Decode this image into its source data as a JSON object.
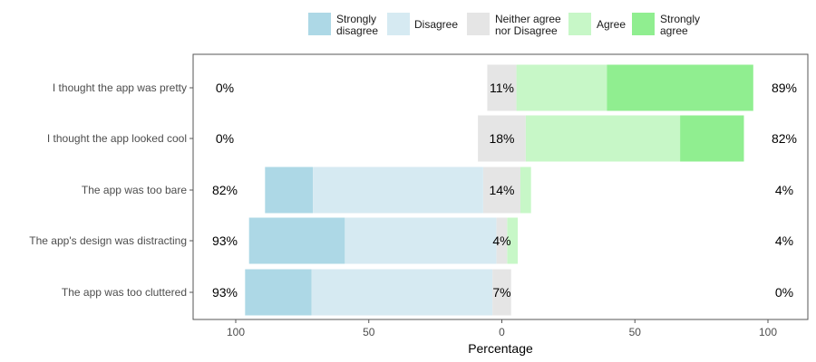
{
  "chart_data": {
    "type": "bar",
    "orientation": "horizontal-diverging",
    "xlabel": "Percentage",
    "xlim": [
      -110,
      110
    ],
    "x_ticks": [
      -100,
      -50,
      0,
      50,
      100
    ],
    "x_tick_labels": [
      "100",
      "50",
      "0",
      "50",
      "100"
    ],
    "legend_position": "top",
    "levels": [
      {
        "name": "Strongly disagree",
        "lines": [
          "Strongly",
          "disagree"
        ],
        "color": "#ADD8E6"
      },
      {
        "name": "Disagree",
        "lines": [
          "Disagree"
        ],
        "color": "#D6EAF2"
      },
      {
        "name": "Neither agree nor Disagree",
        "lines": [
          "Neither agree",
          "nor Disagree"
        ],
        "color": "#E5E5E5"
      },
      {
        "name": "Agree",
        "lines": [
          "Agree"
        ],
        "color": "#C7F7C7"
      },
      {
        "name": "Strongly agree",
        "lines": [
          "Strongly",
          "agree"
        ],
        "color": "#90EE90"
      }
    ],
    "categories": [
      "I thought the app was pretty",
      "I thought the app looked cool",
      "The app was too bare",
      "The app's design was distracting",
      "The app was too cluttered"
    ],
    "values": [
      [
        0,
        0,
        11,
        34,
        55
      ],
      [
        0,
        0,
        18,
        58,
        24
      ],
      [
        18,
        64,
        14,
        4,
        0
      ],
      [
        36,
        57,
        4,
        4,
        0
      ],
      [
        25,
        68,
        7,
        0,
        0
      ]
    ],
    "left_labels": [
      "0%",
      "0%",
      "82%",
      "93%",
      "93%"
    ],
    "center_labels": [
      "11%",
      "18%",
      "14%",
      "4%",
      "7%"
    ],
    "right_labels": [
      "89%",
      "82%",
      "4%",
      "4%",
      "0%"
    ]
  }
}
